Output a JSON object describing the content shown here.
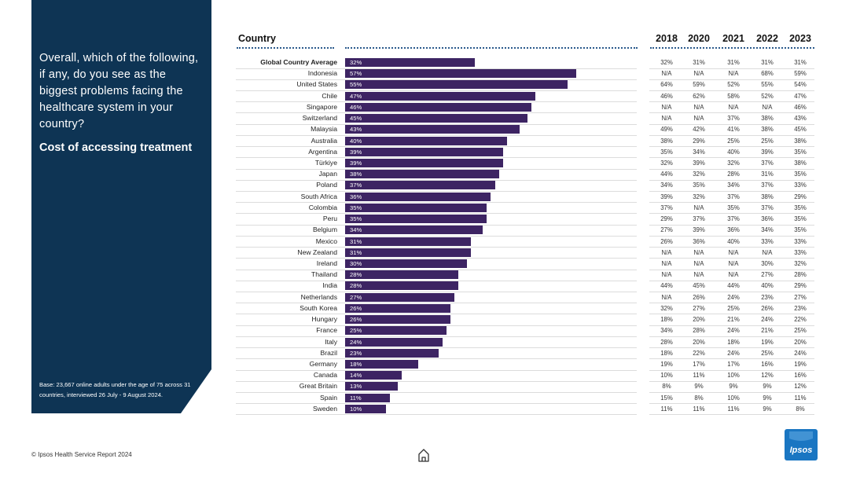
{
  "panel": {
    "question": "Overall, which of the following, if any, do you see as the biggest problems facing the healthcare system in your country?",
    "subtitle": "Cost of accessing treatment",
    "base_note": "Base: 23,667 online adults under the age of 75 across 31 countries, interviewed 26 July - 9 August 2024."
  },
  "footer": {
    "source": "© Ipsos Health Service Report 2024",
    "logo": "Ipsos"
  },
  "icons": {
    "home": "home-icon"
  },
  "colors": {
    "panel": "#0e3454",
    "bar": "#3d2463",
    "logo": "#1a76c2"
  },
  "chart_data": {
    "type": "bar",
    "orientation": "horizontal",
    "country_header": "Country",
    "year_headers": [
      "2018",
      "2020",
      "2021",
      "2022",
      "2023"
    ],
    "xlim": [
      0,
      100
    ],
    "rows": [
      {
        "country": "Global Country Average",
        "bold": true,
        "value": 32,
        "label": "32%",
        "history": [
          "32%",
          "31%",
          "31%",
          "31%",
          "31%"
        ]
      },
      {
        "country": "Indonesia",
        "value": 57,
        "label": "57%",
        "history": [
          "N/A",
          "N/A",
          "N/A",
          "68%",
          "59%"
        ]
      },
      {
        "country": "United States",
        "value": 55,
        "label": "55%",
        "history": [
          "64%",
          "59%",
          "52%",
          "55%",
          "54%"
        ]
      },
      {
        "country": "Chile",
        "value": 47,
        "label": "47%",
        "history": [
          "46%",
          "62%",
          "58%",
          "52%",
          "47%"
        ]
      },
      {
        "country": "Singapore",
        "value": 46,
        "label": "46%",
        "history": [
          "N/A",
          "N/A",
          "N/A",
          "N/A",
          "46%"
        ]
      },
      {
        "country": "Switzerland",
        "value": 45,
        "label": "45%",
        "history": [
          "N/A",
          "N/A",
          "37%",
          "38%",
          "43%"
        ]
      },
      {
        "country": "Malaysia",
        "value": 43,
        "label": "43%",
        "history": [
          "49%",
          "42%",
          "41%",
          "38%",
          "45%"
        ]
      },
      {
        "country": "Australia",
        "value": 40,
        "label": "40%",
        "history": [
          "38%",
          "29%",
          "25%",
          "25%",
          "38%"
        ]
      },
      {
        "country": "Argentina",
        "value": 39,
        "label": "39%",
        "history": [
          "35%",
          "34%",
          "40%",
          "39%",
          "35%"
        ]
      },
      {
        "country": "Türkiye",
        "value": 39,
        "label": "39%",
        "history": [
          "32%",
          "39%",
          "32%",
          "37%",
          "38%"
        ]
      },
      {
        "country": "Japan",
        "value": 38,
        "label": "38%",
        "history": [
          "44%",
          "32%",
          "28%",
          "31%",
          "35%"
        ]
      },
      {
        "country": "Poland",
        "value": 37,
        "label": "37%",
        "history": [
          "34%",
          "35%",
          "34%",
          "37%",
          "33%"
        ]
      },
      {
        "country": "South Africa",
        "value": 36,
        "label": "36%",
        "history": [
          "39%",
          "32%",
          "37%",
          "38%",
          "29%"
        ]
      },
      {
        "country": "Colombia",
        "value": 35,
        "label": "35%",
        "history": [
          "37%",
          "N/A",
          "35%",
          "37%",
          "35%"
        ]
      },
      {
        "country": "Peru",
        "value": 35,
        "label": "35%",
        "history": [
          "29%",
          "37%",
          "37%",
          "36%",
          "35%"
        ]
      },
      {
        "country": "Belgium",
        "value": 34,
        "label": "34%",
        "history": [
          "27%",
          "39%",
          "36%",
          "34%",
          "35%"
        ]
      },
      {
        "country": "Mexico",
        "value": 31,
        "label": "31%",
        "history": [
          "26%",
          "36%",
          "40%",
          "33%",
          "33%"
        ]
      },
      {
        "country": "New Zealand",
        "value": 31,
        "label": "31%",
        "history": [
          "N/A",
          "N/A",
          "N/A",
          "N/A",
          "33%"
        ]
      },
      {
        "country": "Ireland",
        "value": 30,
        "label": "30%",
        "history": [
          "N/A",
          "N/A",
          "N/A",
          "30%",
          "32%"
        ]
      },
      {
        "country": "Thailand",
        "value": 28,
        "label": "28%",
        "history": [
          "N/A",
          "N/A",
          "N/A",
          "27%",
          "28%"
        ]
      },
      {
        "country": "India",
        "value": 28,
        "label": "28%",
        "history": [
          "44%",
          "45%",
          "44%",
          "40%",
          "29%"
        ]
      },
      {
        "country": "Netherlands",
        "value": 27,
        "label": "27%",
        "history": [
          "N/A",
          "26%",
          "24%",
          "23%",
          "27%"
        ]
      },
      {
        "country": "South Korea",
        "value": 26,
        "label": "26%",
        "history": [
          "32%",
          "27%",
          "25%",
          "26%",
          "23%"
        ]
      },
      {
        "country": "Hungary",
        "value": 26,
        "label": "26%",
        "history": [
          "18%",
          "20%",
          "21%",
          "24%",
          "22%"
        ]
      },
      {
        "country": "France",
        "value": 25,
        "label": "25%",
        "history": [
          "34%",
          "28%",
          "24%",
          "21%",
          "25%"
        ]
      },
      {
        "country": "Italy",
        "value": 24,
        "label": "24%",
        "history": [
          "28%",
          "20%",
          "18%",
          "19%",
          "20%"
        ]
      },
      {
        "country": "Brazil",
        "value": 23,
        "label": "23%",
        "history": [
          "18%",
          "22%",
          "24%",
          "25%",
          "24%"
        ]
      },
      {
        "country": "Germany",
        "value": 18,
        "label": "18%",
        "history": [
          "19%",
          "17%",
          "17%",
          "16%",
          "19%"
        ]
      },
      {
        "country": "Canada",
        "value": 14,
        "label": "14%",
        "history": [
          "10%",
          "11%",
          "10%",
          "12%",
          "16%"
        ]
      },
      {
        "country": "Great Britain",
        "value": 13,
        "label": "13%",
        "history": [
          "8%",
          "9%",
          "9%",
          "9%",
          "12%"
        ]
      },
      {
        "country": "Spain",
        "value": 11,
        "label": "11%",
        "history": [
          "15%",
          "8%",
          "10%",
          "9%",
          "11%"
        ]
      },
      {
        "country": "Sweden",
        "value": 10,
        "label": "10%",
        "history": [
          "11%",
          "11%",
          "11%",
          "9%",
          "8%"
        ]
      }
    ]
  }
}
